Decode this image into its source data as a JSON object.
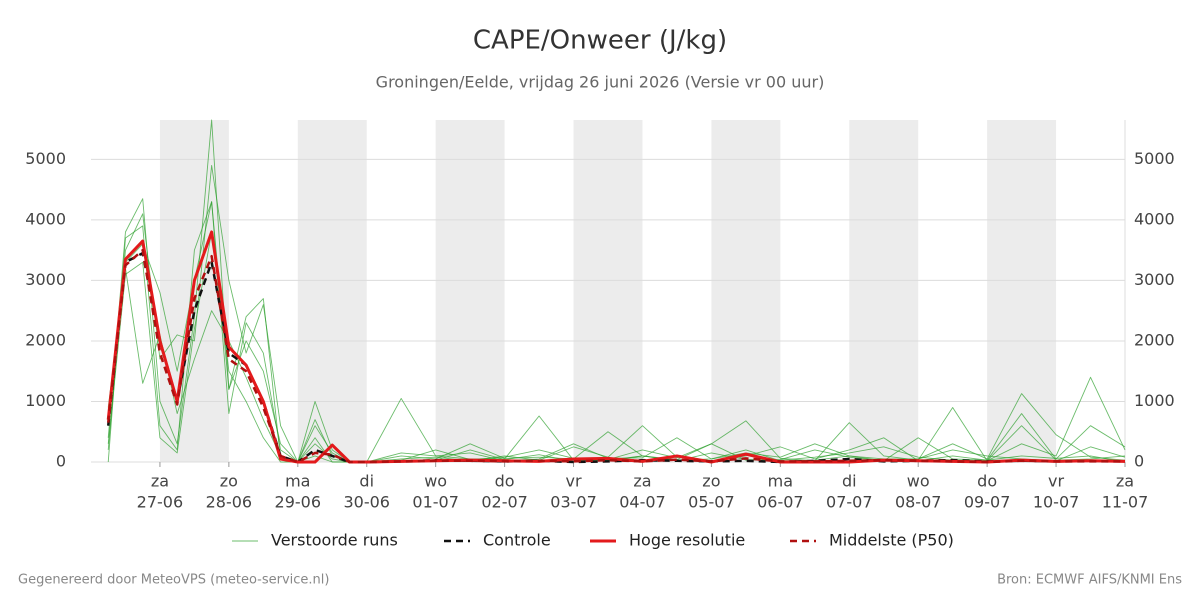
{
  "chart_data": {
    "type": "line",
    "title": "CAPE/Onweer (J/kg)",
    "subtitle": "Groningen/Eelde, vrijdag 26 juni 2026 (Versie vr 00 uur)",
    "footer_left": "Gegenereerd door MeteoVPS (meteo-service.nl)",
    "footer_right": "Bron: ECMWF AIFS/KNMI Ens",
    "x": [
      0.25,
      0.5,
      0.75,
      1,
      1.25,
      1.5,
      1.75,
      2,
      2.25,
      2.5,
      2.75,
      3,
      3.25,
      3.5,
      3.75,
      4,
      4.5,
      5,
      5.5,
      6,
      6.5,
      7,
      7.5,
      8,
      8.5,
      9,
      9.5,
      10,
      10.5,
      11,
      11.5,
      12,
      12.5,
      13,
      13.5,
      14,
      14.5,
      15
    ],
    "xlim": [
      0,
      15
    ],
    "xticks": [
      {
        "value": 1,
        "label": "za",
        "date": "27-06"
      },
      {
        "value": 2,
        "label": "zo",
        "date": "28-06"
      },
      {
        "value": 3,
        "label": "ma",
        "date": "29-06"
      },
      {
        "value": 4,
        "label": "di",
        "date": "30-06"
      },
      {
        "value": 5,
        "label": "wo",
        "date": "01-07"
      },
      {
        "value": 6,
        "label": "do",
        "date": "02-07"
      },
      {
        "value": 7,
        "label": "vr",
        "date": "03-07"
      },
      {
        "value": 8,
        "label": "za",
        "date": "04-07"
      },
      {
        "value": 9,
        "label": "zo",
        "date": "05-07"
      },
      {
        "value": 10,
        "label": "ma",
        "date": "06-07"
      },
      {
        "value": 11,
        "label": "di",
        "date": "07-07"
      },
      {
        "value": 12,
        "label": "wo",
        "date": "08-07"
      },
      {
        "value": 13,
        "label": "do",
        "date": "09-07"
      },
      {
        "value": 14,
        "label": "vr",
        "date": "10-07"
      },
      {
        "value": 15,
        "label": "za",
        "date": "11-07"
      }
    ],
    "ylim": [
      0,
      5650
    ],
    "yticks": [
      0,
      1000,
      2000,
      3000,
      4000,
      5000
    ],
    "grid": true,
    "series": [
      {
        "name": "Verstoorde runs",
        "color": "#2ca02c",
        "style": "solid",
        "members": [
          [
            400,
            3800,
            4350,
            1000,
            300,
            2400,
            5650,
            1200,
            2000,
            1500,
            300,
            0,
            1000,
            200,
            0,
            0,
            1050,
            100,
            50,
            50,
            760,
            30,
            20,
            100,
            30,
            50,
            200,
            20,
            30,
            100,
            20,
            50,
            300,
            50,
            1130,
            450,
            80,
            30
          ],
          [
            200,
            3500,
            4100,
            1700,
            2100,
            2000,
            4900,
            3000,
            1800,
            2600,
            600,
            0,
            400,
            0,
            0,
            0,
            100,
            50,
            300,
            60,
            80,
            50,
            500,
            100,
            40,
            300,
            680,
            60,
            20,
            650,
            100,
            30,
            900,
            20,
            300,
            100,
            1400,
            200
          ],
          [
            0,
            3700,
            3900,
            600,
            200,
            3500,
            4300,
            800,
            2300,
            1800,
            200,
            0,
            700,
            100,
            0,
            0,
            50,
            80,
            20,
            100,
            30,
            250,
            80,
            600,
            80,
            20,
            100,
            250,
            50,
            200,
            400,
            20,
            100,
            30,
            800,
            50,
            600,
            250
          ],
          [
            900,
            3200,
            1300,
            2100,
            800,
            1700,
            2500,
            2000,
            1400,
            700,
            100,
            0,
            300,
            50,
            0,
            0,
            20,
            30,
            200,
            40,
            120,
            10,
            40,
            200,
            70,
            300,
            30,
            40,
            200,
            80,
            20,
            400,
            50,
            30,
            100,
            60,
            100,
            0
          ],
          [
            300,
            3100,
            3300,
            400,
            150,
            2200,
            3800,
            1500,
            1000,
            400,
            0,
            0,
            100,
            0,
            0,
            0,
            150,
            100,
            150,
            20,
            50,
            300,
            60,
            70,
            400,
            50,
            150,
            80,
            300,
            100,
            50,
            50,
            200,
            100,
            50,
            20,
            250,
            80
          ],
          [
            600,
            3300,
            3600,
            2800,
            1500,
            3000,
            4300,
            1200,
            2400,
            2700,
            50,
            0,
            600,
            150,
            0,
            0,
            30,
            200,
            40,
            80,
            200,
            60,
            30,
            100,
            20,
            150,
            40,
            30,
            80,
            150,
            250,
            80,
            30,
            20,
            600,
            30,
            50,
            100
          ]
        ]
      },
      {
        "name": "Controle",
        "color": "#111111",
        "style": "dashed",
        "values": [
          600,
          3300,
          3450,
          2000,
          1000,
          2500,
          3300,
          1800,
          1600,
          1000,
          100,
          0,
          200,
          100,
          0,
          0,
          10,
          30,
          20,
          10,
          20,
          0,
          10,
          30,
          20,
          10,
          20,
          0,
          20,
          50,
          10,
          20,
          30,
          10,
          20,
          10,
          20,
          10
        ]
      },
      {
        "name": "Hoge resolutie",
        "color": "#e31a1c",
        "style": "solid",
        "values": [
          700,
          3350,
          3650,
          2000,
          1000,
          3000,
          3800,
          1900,
          1600,
          1000,
          50,
          0,
          0,
          280,
          0,
          0,
          10,
          20,
          30,
          20,
          10,
          50,
          60,
          10,
          100,
          0,
          130,
          0,
          0,
          0,
          30,
          20,
          10,
          0,
          30,
          10,
          20,
          10
        ]
      },
      {
        "name": "Middelste (P50)",
        "color": "#b01010",
        "style": "dashed",
        "values": [
          650,
          3250,
          3500,
          1800,
          950,
          2700,
          3400,
          1700,
          1500,
          900,
          100,
          0,
          150,
          120,
          0,
          0,
          10,
          20,
          20,
          10,
          20,
          10,
          30,
          10,
          40,
          10,
          60,
          10,
          10,
          20,
          30,
          20,
          10,
          0,
          20,
          10,
          10,
          10
        ]
      }
    ]
  }
}
